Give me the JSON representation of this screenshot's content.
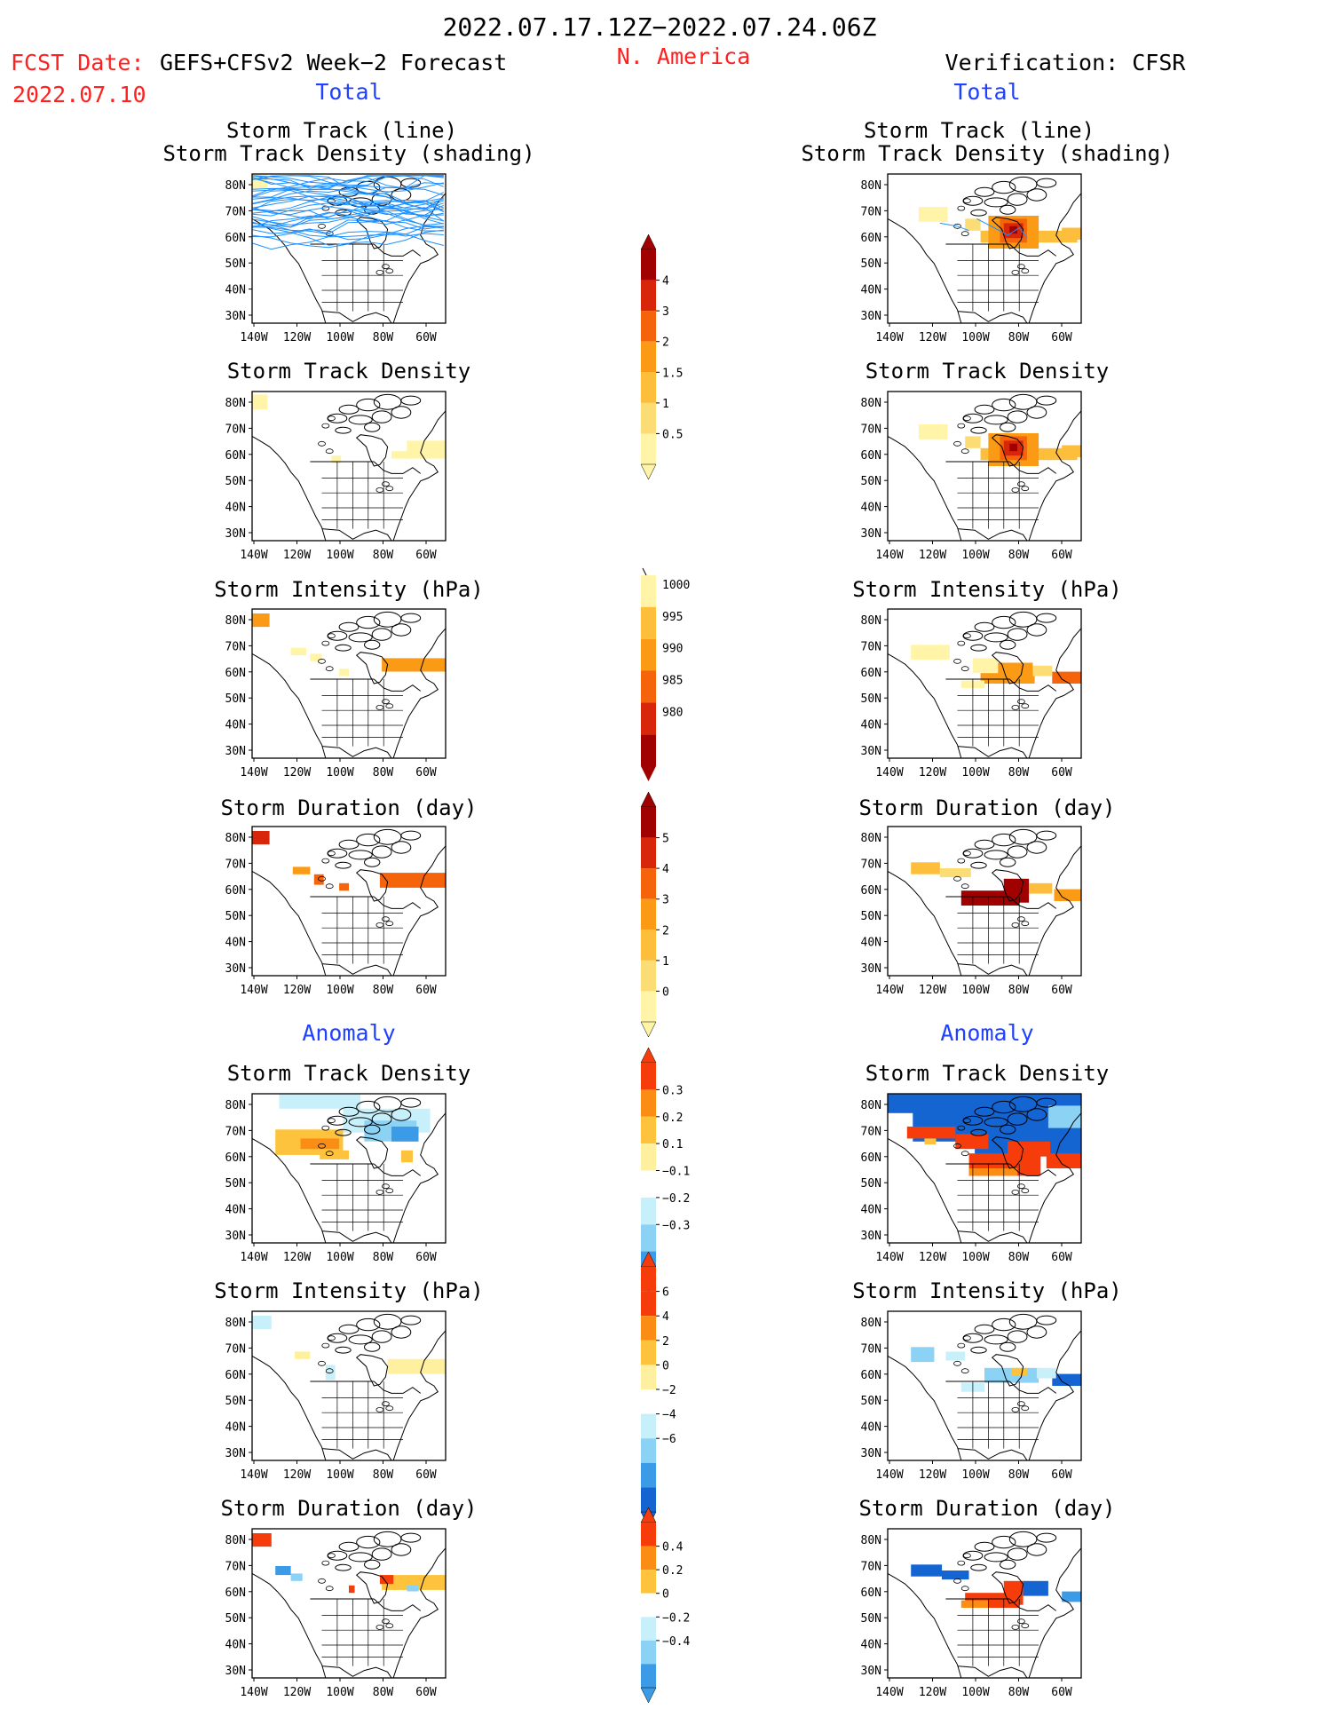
{
  "header": {
    "date_range": "2022.07.17.12Z−2022.07.24.06Z",
    "fcst_label": "FCST Date:",
    "fcst_model": "GEFS+CFSv2 Week−2 Forecast",
    "fcst_date": "2022.07.10",
    "region": "N. America",
    "verification": "Verification: CFSR",
    "total_left": "Total",
    "total_right": "Total",
    "anomaly_left": "Anomaly",
    "anomaly_right": "Anomaly"
  },
  "panel_titles": {
    "track_line": "Storm Track (line)",
    "track_density_shading": "Storm Track Density (shading)",
    "track_density": "Storm Track Density",
    "intensity": "Storm Intensity (hPa)",
    "duration": "Storm Duration (day)"
  },
  "axes": {
    "lat_labels": [
      "80N",
      "70N",
      "60N",
      "50N",
      "40N",
      "30N"
    ],
    "lon_labels": [
      "140W",
      "120W",
      "100W",
      "80W",
      "60W"
    ]
  },
  "colorbars": {
    "density": [
      "4",
      "3",
      "2",
      "1.5",
      "1",
      "0.5"
    ],
    "intensity": [
      "1000",
      "995",
      "990",
      "985",
      "980"
    ],
    "duration": [
      "5",
      "4",
      "3",
      "2",
      "1",
      "0"
    ],
    "density_anom": [
      "0.3",
      "0.2",
      "0.1",
      "−0.1",
      "−0.2",
      "−0.3"
    ],
    "intensity_anom": [
      "6",
      "4",
      "2",
      "0",
      "−2",
      "−4",
      "−6"
    ],
    "duration_anom": [
      "0.4",
      "0.2",
      "0",
      "−0.2",
      "−0.4"
    ]
  },
  "colors": {
    "title_red": "#ff2020",
    "title_blue": "#2040ff",
    "track_line": "#1e90ff",
    "warm_scale": [
      "#fff4a8",
      "#fcdc74",
      "#fdbe3c",
      "#fb9a14",
      "#f5640a",
      "#d7260a",
      "#a00000"
    ],
    "anom_scale": [
      "#1464d2",
      "#3c9be6",
      "#8cd2f5",
      "#c8f0fa",
      "#ffffff",
      "#fff0a0",
      "#fdc33c",
      "#fb8c14",
      "#f53c0a"
    ]
  }
}
